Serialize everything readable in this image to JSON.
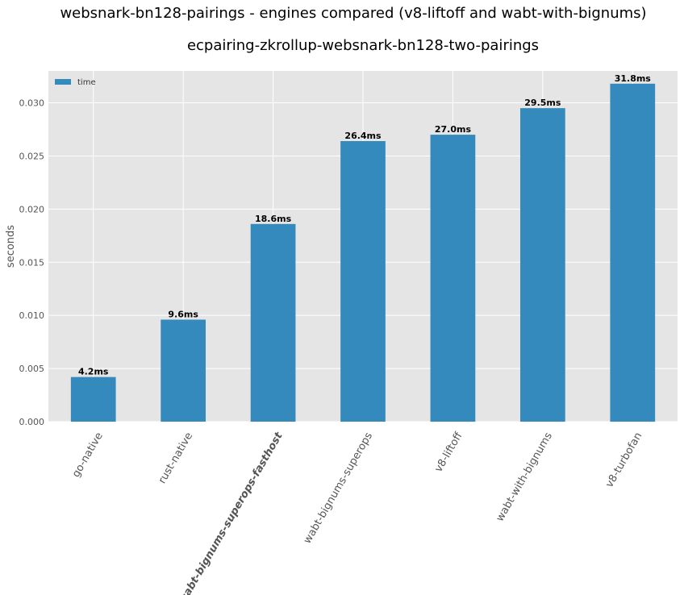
{
  "chart_data": {
    "type": "bar",
    "title": "websnark-bn128-pairings - engines compared (v8-liftoff and wabt-with-bignums)",
    "subtitle": "ecpairing-zkrollup-websnark-bn128-two-pairings",
    "xlabel": "",
    "ylabel": "seconds",
    "ylim": [
      0,
      0.033
    ],
    "yticks": [
      "0.000",
      "0.005",
      "0.010",
      "0.015",
      "0.020",
      "0.025",
      "0.030"
    ],
    "yticks_values": [
      0,
      0.005,
      0.01,
      0.015,
      0.02,
      0.025,
      0.03
    ],
    "grid": true,
    "legend_position": "top-left",
    "categories": [
      "go-native",
      "rust-native",
      "wabt-bignums-superops-fasthost",
      "wabt-bignums-superops",
      "v8-liftoff",
      "wabt-with-bignums",
      "v8-turbofan"
    ],
    "highlighted_category": "wabt-bignums-superops-fasthost",
    "series": [
      {
        "name": "time",
        "values": [
          0.0042,
          0.0096,
          0.0186,
          0.0264,
          0.027,
          0.0295,
          0.0318
        ],
        "labels": [
          "4.2ms",
          "9.6ms",
          "18.6ms",
          "26.4ms",
          "27.0ms",
          "29.5ms",
          "31.8ms"
        ]
      }
    ],
    "colors": {
      "bar": "#348abd",
      "highlight_label": "#2ca02c",
      "plot_background": "#e5e5e5",
      "grid": "#ffffff",
      "tick_text": "#555555"
    }
  }
}
